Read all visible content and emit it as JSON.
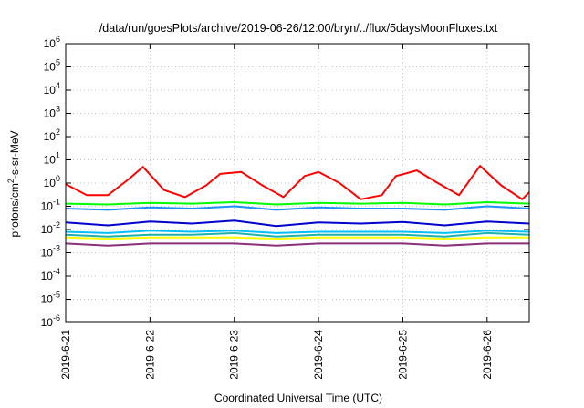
{
  "chart_data": {
    "type": "line",
    "title": "/data/run/goesPlots/archive/2019-06-26/12:00/bryn/../flux/5daysMoonFluxes.txt",
    "xlabel": "Coordinated Universal Time (UTC)",
    "ylabel": {
      "prefix": "protons/cm",
      "sup": "2",
      "suffix": "-s-sr-MeV"
    },
    "yscale": "log",
    "ylim": [
      1e-06,
      1000000.0
    ],
    "xlim": [
      "2019-06-21T00:00",
      "2019-06-26T12:00"
    ],
    "y_ticks": [
      {
        "value": 1e-06,
        "base": "10",
        "exp": "-6"
      },
      {
        "value": 1e-05,
        "base": "10",
        "exp": "-5"
      },
      {
        "value": 0.0001,
        "base": "10",
        "exp": "-4"
      },
      {
        "value": 0.001,
        "base": "10",
        "exp": "-3"
      },
      {
        "value": 0.01,
        "base": "10",
        "exp": "-2"
      },
      {
        "value": 0.1,
        "base": "10",
        "exp": "-1"
      },
      {
        "value": 1.0,
        "base": "10",
        "exp": "0"
      },
      {
        "value": 10.0,
        "base": "10",
        "exp": "1"
      },
      {
        "value": 100.0,
        "base": "10",
        "exp": "2"
      },
      {
        "value": 1000.0,
        "base": "10",
        "exp": "3"
      },
      {
        "value": 10000.0,
        "base": "10",
        "exp": "4"
      },
      {
        "value": 100000.0,
        "base": "10",
        "exp": "5"
      },
      {
        "value": 1000000.0,
        "base": "10",
        "exp": "6"
      }
    ],
    "x_ticks": [
      {
        "value": "2019-06-21T00:00",
        "label": "2019-6-21"
      },
      {
        "value": "2019-06-22T00:00",
        "label": "2019-6-22"
      },
      {
        "value": "2019-06-23T00:00",
        "label": "2019-6-23"
      },
      {
        "value": "2019-06-24T00:00",
        "label": "2019-6-24"
      },
      {
        "value": "2019-06-25T00:00",
        "label": "2019-6-25"
      },
      {
        "value": "2019-06-26T00:00",
        "label": "2019-6-26"
      }
    ],
    "grid": true,
    "legend": "none",
    "series": [
      {
        "color": "#ff0000",
        "x": [
          "2019-06-21T00:00",
          "2019-06-21T06:00",
          "2019-06-21T12:00",
          "2019-06-21T18:00",
          "2019-06-21T22:00",
          "2019-06-22T04:00",
          "2019-06-22T10:00",
          "2019-06-22T16:00",
          "2019-06-22T20:00",
          "2019-06-23T02:00",
          "2019-06-23T08:00",
          "2019-06-23T14:00",
          "2019-06-23T20:00",
          "2019-06-24T00:00",
          "2019-06-24T06:00",
          "2019-06-24T12:00",
          "2019-06-24T18:00",
          "2019-06-24T22:00",
          "2019-06-25T04:00",
          "2019-06-25T10:00",
          "2019-06-25T16:00",
          "2019-06-25T22:00",
          "2019-06-26T04:00",
          "2019-06-26T10:00",
          "2019-06-26T12:00"
        ],
        "y": [
          0.9,
          0.3,
          0.3,
          1.5,
          5,
          0.5,
          0.25,
          0.8,
          2.5,
          3,
          0.8,
          0.25,
          2,
          3,
          1,
          0.2,
          0.3,
          2,
          3.5,
          1,
          0.3,
          5.5,
          0.8,
          0.2,
          0.4
        ]
      },
      {
        "color": "#00ff00",
        "x": [
          "2019-06-21T00:00",
          "2019-06-21T12:00",
          "2019-06-22T00:00",
          "2019-06-22T12:00",
          "2019-06-23T00:00",
          "2019-06-23T12:00",
          "2019-06-24T00:00",
          "2019-06-24T12:00",
          "2019-06-25T00:00",
          "2019-06-25T12:00",
          "2019-06-26T00:00",
          "2019-06-26T12:00"
        ],
        "y": [
          0.13,
          0.12,
          0.14,
          0.13,
          0.15,
          0.12,
          0.14,
          0.13,
          0.14,
          0.12,
          0.15,
          0.13
        ]
      },
      {
        "color": "#1e90ff",
        "x": [
          "2019-06-21T00:00",
          "2019-06-21T12:00",
          "2019-06-22T00:00",
          "2019-06-22T12:00",
          "2019-06-23T00:00",
          "2019-06-23T12:00",
          "2019-06-24T00:00",
          "2019-06-24T12:00",
          "2019-06-25T00:00",
          "2019-06-25T12:00",
          "2019-06-26T00:00",
          "2019-06-26T12:00"
        ],
        "y": [
          0.08,
          0.07,
          0.09,
          0.08,
          0.1,
          0.07,
          0.09,
          0.08,
          0.08,
          0.07,
          0.1,
          0.08
        ]
      },
      {
        "color": "#0000cd",
        "x": [
          "2019-06-21T00:00",
          "2019-06-21T12:00",
          "2019-06-22T00:00",
          "2019-06-22T12:00",
          "2019-06-23T00:00",
          "2019-06-23T12:00",
          "2019-06-24T00:00",
          "2019-06-24T12:00",
          "2019-06-25T00:00",
          "2019-06-25T12:00",
          "2019-06-26T00:00",
          "2019-06-26T12:00"
        ],
        "y": [
          0.02,
          0.015,
          0.022,
          0.018,
          0.024,
          0.014,
          0.02,
          0.018,
          0.021,
          0.015,
          0.022,
          0.018
        ]
      },
      {
        "color": "#00bfff",
        "x": [
          "2019-06-21T00:00",
          "2019-06-21T12:00",
          "2019-06-22T00:00",
          "2019-06-22T12:00",
          "2019-06-23T00:00",
          "2019-06-23T12:00",
          "2019-06-24T00:00",
          "2019-06-24T12:00",
          "2019-06-25T00:00",
          "2019-06-25T12:00",
          "2019-06-26T00:00",
          "2019-06-26T12:00"
        ],
        "y": [
          0.008,
          0.007,
          0.009,
          0.008,
          0.009,
          0.007,
          0.008,
          0.008,
          0.008,
          0.007,
          0.009,
          0.008
        ]
      },
      {
        "color": "#20b2aa",
        "x": [
          "2019-06-21T00:00",
          "2019-06-21T12:00",
          "2019-06-22T00:00",
          "2019-06-22T12:00",
          "2019-06-23T00:00",
          "2019-06-23T12:00",
          "2019-06-24T00:00",
          "2019-06-24T12:00",
          "2019-06-25T00:00",
          "2019-06-25T12:00",
          "2019-06-26T00:00",
          "2019-06-26T12:00"
        ],
        "y": [
          0.006,
          0.005,
          0.006,
          0.006,
          0.007,
          0.005,
          0.006,
          0.006,
          0.006,
          0.005,
          0.007,
          0.006
        ]
      },
      {
        "color": "#ffff00",
        "x": [
          "2019-06-21T00:00",
          "2019-06-21T12:00",
          "2019-06-22T00:00",
          "2019-06-22T12:00",
          "2019-06-23T00:00",
          "2019-06-23T12:00",
          "2019-06-24T00:00",
          "2019-06-24T12:00",
          "2019-06-25T00:00",
          "2019-06-25T12:00",
          "2019-06-26T00:00",
          "2019-06-26T12:00"
        ],
        "y": [
          0.0045,
          0.004,
          0.0045,
          0.0045,
          0.0045,
          0.004,
          0.0045,
          0.0045,
          0.0045,
          0.004,
          0.0045,
          0.0045
        ]
      },
      {
        "color": "#8b2f7a",
        "x": [
          "2019-06-21T00:00",
          "2019-06-21T12:00",
          "2019-06-22T00:00",
          "2019-06-22T12:00",
          "2019-06-23T00:00",
          "2019-06-23T12:00",
          "2019-06-24T00:00",
          "2019-06-24T12:00",
          "2019-06-25T00:00",
          "2019-06-25T12:00",
          "2019-06-26T00:00",
          "2019-06-26T12:00"
        ],
        "y": [
          0.0025,
          0.002,
          0.0025,
          0.0025,
          0.0025,
          0.002,
          0.0025,
          0.0025,
          0.0025,
          0.002,
          0.0025,
          0.0025
        ]
      }
    ]
  }
}
